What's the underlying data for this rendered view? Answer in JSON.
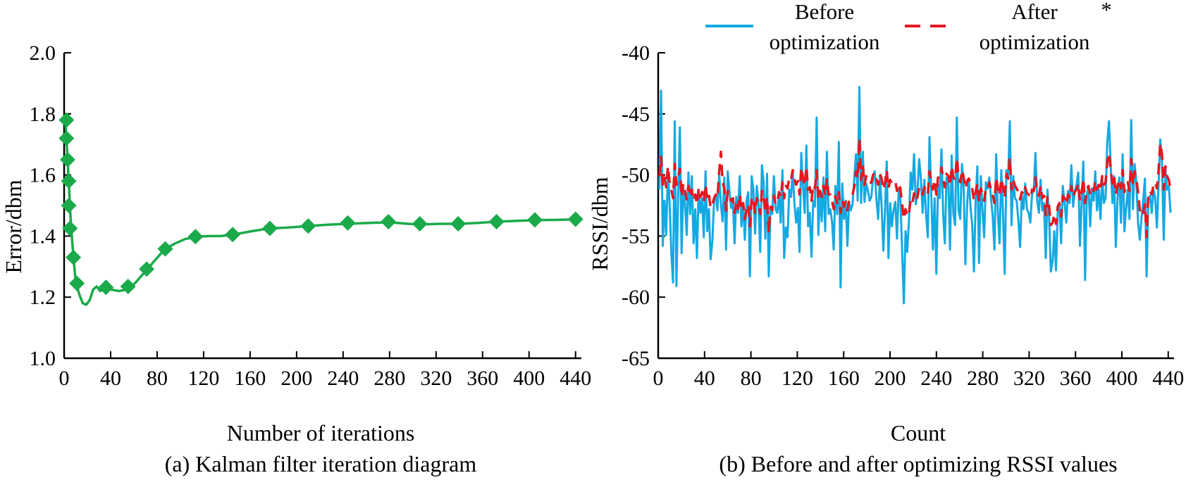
{
  "chart_data": [
    {
      "type": "line",
      "caption": "(a) Kalman filter iteration diagram",
      "xlabel": "Number of iterations",
      "ylabel": "Error/dbm",
      "xlim": [
        0,
        445
      ],
      "ylim": [
        1.0,
        2.0
      ],
      "xticks": [
        "0",
        "40",
        "80",
        "120",
        "160",
        "200",
        "240",
        "280",
        "320",
        "360",
        "400",
        "440"
      ],
      "yticks": [
        "1.0",
        "1.2",
        "1.4",
        "1.6",
        "1.8",
        "2.0"
      ],
      "color": "#1aaa4a",
      "curve": [
        [
          1,
          1.78
        ],
        [
          2,
          1.72
        ],
        [
          3,
          1.65
        ],
        [
          4,
          1.58
        ],
        [
          5,
          1.5
        ],
        [
          6,
          1.43
        ],
        [
          8,
          1.33
        ],
        [
          10,
          1.25
        ],
        [
          13,
          1.21
        ],
        [
          16,
          1.18
        ],
        [
          19,
          1.175
        ],
        [
          22,
          1.19
        ],
        [
          25,
          1.225
        ],
        [
          28,
          1.235
        ],
        [
          31,
          1.22
        ],
        [
          35,
          1.228
        ],
        [
          40,
          1.225
        ],
        [
          47,
          1.22
        ],
        [
          55,
          1.225
        ],
        [
          62,
          1.25
        ],
        [
          70,
          1.285
        ],
        [
          78,
          1.32
        ],
        [
          86,
          1.355
        ],
        [
          95,
          1.375
        ],
        [
          104,
          1.39
        ],
        [
          114,
          1.398
        ],
        [
          125,
          1.4
        ],
        [
          135,
          1.4
        ],
        [
          146,
          1.405
        ],
        [
          160,
          1.415
        ],
        [
          177,
          1.425
        ],
        [
          193,
          1.428
        ],
        [
          210,
          1.433
        ],
        [
          227,
          1.437
        ],
        [
          244,
          1.44
        ],
        [
          262,
          1.443
        ],
        [
          280,
          1.445
        ],
        [
          296,
          1.44
        ],
        [
          307,
          1.438
        ],
        [
          323,
          1.44
        ],
        [
          340,
          1.44
        ],
        [
          356,
          1.443
        ],
        [
          372,
          1.447
        ],
        [
          390,
          1.45
        ],
        [
          406,
          1.452
        ],
        [
          425,
          1.453
        ],
        [
          442,
          1.455
        ]
      ],
      "markers": [
        [
          2,
          1.78
        ],
        [
          2,
          1.72
        ],
        [
          3,
          1.65
        ],
        [
          4,
          1.58
        ],
        [
          4,
          1.5
        ],
        [
          5,
          1.425
        ],
        [
          8,
          1.33
        ],
        [
          11,
          1.245
        ],
        [
          36,
          1.232
        ],
        [
          55,
          1.235
        ],
        [
          71,
          1.292
        ],
        [
          87,
          1.358
        ],
        [
          113,
          1.398
        ],
        [
          145,
          1.405
        ],
        [
          177,
          1.425
        ],
        [
          210,
          1.433
        ],
        [
          244,
          1.443
        ],
        [
          279,
          1.447
        ],
        [
          306,
          1.44
        ],
        [
          339,
          1.44
        ],
        [
          372,
          1.447
        ],
        [
          405,
          1.453
        ],
        [
          440,
          1.455
        ]
      ]
    },
    {
      "type": "line",
      "caption": "(b) Before and after optimizing RSSI values",
      "xlabel": "Count",
      "ylabel": "RSSI/dbm",
      "xlim": [
        0,
        445
      ],
      "ylim": [
        -65,
        -40
      ],
      "xticks": [
        "0",
        "40",
        "80",
        "120",
        "160",
        "200",
        "240",
        "280",
        "320",
        "360",
        "400",
        "440"
      ],
      "yticks": [
        "-65",
        "-60",
        "-55",
        "-50",
        "-45",
        "-40"
      ],
      "legend_position": "top",
      "annotation": "*",
      "series": [
        {
          "name": "Before optimization",
          "color": "#14a9e3",
          "style": "solid",
          "values": [
            -51.2,
            -43.1,
            -55.8,
            -52.1,
            -54.9,
            -49.6,
            -52.4,
            -56.3,
            -58.8,
            -45.6,
            -59.1,
            -51.8,
            -46.1,
            -56.4,
            -51.1,
            -52.3,
            -54.9,
            -49.8,
            -53.2,
            -50.1,
            -55.6,
            -52.8,
            -56.8,
            -51.2,
            -53.1,
            -51.9,
            -55.1,
            -49.7,
            -54.6,
            -52.8,
            -56.9,
            -55.4,
            -52.1,
            -51.6,
            -52.9,
            -49.9,
            -52.4,
            -53.8,
            -50.2,
            -56.1,
            -49.7,
            -51.3,
            -52.7,
            -52.1,
            -55.6,
            -51.8,
            -53.1,
            -50.1,
            -54.2,
            -52.3,
            -55.3,
            -52.1,
            -51.4,
            -58.3,
            -50.1,
            -51.2,
            -54.8,
            -50.9,
            -52.4,
            -56.3,
            -49.2,
            -50.6,
            -55.2,
            -49.9,
            -58.3,
            -52.6,
            -53.2,
            -50.1,
            -52.8,
            -53.1,
            -51.6,
            -53.9,
            -49.6,
            -56.8,
            -54.3,
            -55.1,
            -51.2,
            -51.8,
            -49.6,
            -52.3,
            -53.9,
            -52.7,
            -56.3,
            -48.2,
            -50.8,
            -53.1,
            -47.6,
            -54.2,
            -53.1,
            -56.7,
            -52.1,
            -52.6,
            -45.3,
            -54.9,
            -51.4,
            -53.8,
            -50.2,
            -54.6,
            -48.1,
            -53.2,
            -52.8,
            -53.8,
            -56.1,
            -50.9,
            -53.2,
            -47.3,
            -59.2,
            -50.7,
            -53.6,
            -52.1,
            -55.8,
            -52.2,
            -52.9,
            -52.4,
            -50.3,
            -48.3,
            -52.1,
            -42.8,
            -52.3,
            -48.1,
            -52.2,
            -50.7,
            -51.3,
            -52.1,
            -51.8,
            -50.2,
            -49.7,
            -52.1,
            -53.6,
            -50.1,
            -52.4,
            -56.2,
            -52.9,
            -48.9,
            -56.8,
            -52.3,
            -54.2,
            -52.9,
            -52.2,
            -55.2,
            -51.1,
            -51.9,
            -56.3,
            -60.5,
            -54.6,
            -56.3,
            -53.7,
            -49.8,
            -51.2,
            -48.3,
            -52.4,
            -51.2,
            -48.7,
            -50.3,
            -53.1,
            -50.4,
            -53.2,
            -55.1,
            -46.9,
            -51.3,
            -56.1,
            -51.9,
            -58.1,
            -50.7,
            -51.9,
            -47.9,
            -53.2,
            -55.6,
            -50.2,
            -50.2,
            -56.1,
            -48.4,
            -53.2,
            -54.1,
            -45.3,
            -52.9,
            -53.6,
            -49.1,
            -51.1,
            -57.3,
            -52.4,
            -50.3,
            -52.6,
            -54.1,
            -57.9,
            -52.1,
            -49.3,
            -57.2,
            -50.1,
            -52.9,
            -55.1,
            -50.6,
            -51.1,
            -50.2,
            -51.9,
            -53.4,
            -56.1,
            -48.3,
            -53.1,
            -55.6,
            -49.6,
            -53.1,
            -58.1,
            -49.6,
            -50.3,
            -45.6,
            -54.1,
            -50.1,
            -51.9,
            -52.1,
            -53.7,
            -55.9,
            -51.7,
            -52.8,
            -50.7,
            -52.8,
            -53.1,
            -53.9,
            -51.6,
            -51.2,
            -48.2,
            -52.1,
            -53.1,
            -50.4,
            -52.9,
            -52.3,
            -56.8,
            -51.2,
            -53.6,
            -57.9,
            -57.1,
            -54.6,
            -57.8,
            -53.1,
            -52.3,
            -55.6,
            -50.9,
            -52.2,
            -53.9,
            -51.3,
            -52.3,
            -49.2,
            -52.6,
            -51.3,
            -50.8,
            -49.8,
            -55.8,
            -52.3,
            -48.9,
            -58.6,
            -51.7,
            -50.9,
            -54.2,
            -51.1,
            -52.1,
            -49.7,
            -52.9,
            -51.2,
            -53.6,
            -50.2,
            -52.3,
            -51.9,
            -47.3,
            -45.6,
            -49.1,
            -52.3,
            -50.1,
            -55.9,
            -51.8,
            -50.2,
            -53.9,
            -48.3,
            -54.6,
            -52.7,
            -51.2,
            -53.6,
            -45.5,
            -52.8,
            -49.1,
            -50.6,
            -53.9,
            -55.3,
            -53.6,
            -52.1,
            -50.3,
            -58.3,
            -51.9,
            -51.7,
            -53.1,
            -51.2,
            -51.8,
            -54.3,
            -50.7,
            -47.1,
            -48.9,
            -55.3,
            -49.6,
            -51.2,
            -50.9,
            -53.1
          ]
        },
        {
          "name": "After optimization",
          "color": "#e8161e",
          "style": "dashed",
          "values": [
            -50.1,
            -48.5,
            -50.8,
            -50.2,
            -51.0,
            -49.3,
            -50.6,
            -51.2,
            -51.9,
            -49.1,
            -50.8,
            -50.2,
            -49.5,
            -51.8,
            -50.7,
            -51.3,
            -52.0,
            -50.9,
            -51.8,
            -51.2,
            -52.1,
            -51.6,
            -52.4,
            -51.1,
            -51.8,
            -51.4,
            -52.2,
            -50.8,
            -52.0,
            -51.6,
            -52.7,
            -52.4,
            -51.9,
            -51.6,
            -51.9,
            -49.7,
            -48.1,
            -50.6,
            -51.1,
            -52.9,
            -51.3,
            -51.7,
            -52.1,
            -51.9,
            -53.1,
            -52.2,
            -52.8,
            -51.6,
            -52.9,
            -52.3,
            -53.6,
            -52.8,
            -52.4,
            -54.2,
            -51.8,
            -52.1,
            -53.1,
            -51.9,
            -52.4,
            -53.2,
            -51.3,
            -51.9,
            -53.1,
            -51.8,
            -54.8,
            -52.6,
            -52.9,
            -51.7,
            -52.4,
            -52.3,
            -51.4,
            -51.8,
            -50.6,
            -51.9,
            -50.9,
            -51.1,
            -50.2,
            -50.4,
            -49.6,
            -50.3,
            -50.8,
            -50.5,
            -51.6,
            -49.4,
            -50.2,
            -50.9,
            -49.3,
            -51.2,
            -51.0,
            -52.1,
            -50.8,
            -51.1,
            -49.6,
            -52.0,
            -51.3,
            -51.8,
            -50.9,
            -51.7,
            -50.3,
            -51.6,
            -51.6,
            -52.1,
            -52.8,
            -51.7,
            -52.3,
            -51.4,
            -53.1,
            -52.1,
            -52.6,
            -52.2,
            -52.9,
            -52.0,
            -51.8,
            -51.6,
            -51.0,
            -49.7,
            -50.3,
            -47.0,
            -50.4,
            -49.2,
            -50.8,
            -50.1,
            -50.4,
            -50.7,
            -50.6,
            -50.0,
            -49.8,
            -50.4,
            -50.8,
            -49.9,
            -50.3,
            -51.2,
            -50.6,
            -49.6,
            -51.1,
            -50.4,
            -50.7,
            -50.6,
            -50.5,
            -51.3,
            -50.7,
            -51.1,
            -52.4,
            -53.6,
            -52.8,
            -53.4,
            -53.1,
            -52.0,
            -52.3,
            -51.5,
            -52.1,
            -51.8,
            -51.0,
            -51.2,
            -51.6,
            -51.0,
            -51.3,
            -51.6,
            -49.7,
            -50.6,
            -51.2,
            -50.4,
            -51.6,
            -50.2,
            -50.3,
            -49.4,
            -50.3,
            -51.0,
            -49.9,
            -50.1,
            -50.9,
            -49.3,
            -50.2,
            -50.4,
            -48.6,
            -50.1,
            -50.6,
            -49.6,
            -50.2,
            -51.1,
            -50.5,
            -50.3,
            -50.7,
            -51.1,
            -52.1,
            -51.4,
            -50.7,
            -52.2,
            -51.1,
            -51.6,
            -52.1,
            -51.1,
            -51.2,
            -50.6,
            -51.2,
            -51.6,
            -52.3,
            -50.2,
            -51.1,
            -51.7,
            -50.3,
            -51.0,
            -51.9,
            -49.9,
            -50.3,
            -48.6,
            -51.2,
            -50.4,
            -50.9,
            -51.1,
            -51.4,
            -52.0,
            -51.4,
            -51.6,
            -51.0,
            -51.5,
            -51.6,
            -51.9,
            -51.2,
            -51.3,
            -50.2,
            -51.4,
            -51.7,
            -50.9,
            -51.9,
            -51.7,
            -53.3,
            -51.8,
            -52.6,
            -54.1,
            -53.9,
            -53.2,
            -54.0,
            -52.6,
            -52.3,
            -53.4,
            -51.7,
            -51.9,
            -52.4,
            -51.6,
            -51.9,
            -50.9,
            -51.8,
            -51.4,
            -51.2,
            -50.7,
            -52.1,
            -51.4,
            -50.3,
            -52.3,
            -51.2,
            -50.9,
            -51.6,
            -51.1,
            -51.3,
            -50.5,
            -51.2,
            -50.8,
            -51.3,
            -50.1,
            -50.8,
            -50.6,
            -48.9,
            -48.2,
            -49.6,
            -50.7,
            -50.1,
            -51.6,
            -50.9,
            -50.4,
            -51.1,
            -49.6,
            -51.4,
            -51.0,
            -50.6,
            -51.3,
            -48.7,
            -50.8,
            -49.7,
            -50.3,
            -51.4,
            -52.9,
            -52.6,
            -53.1,
            -52.4,
            -55.1,
            -51.6,
            -51.3,
            -51.6,
            -50.8,
            -50.6,
            -51.1,
            -49.6,
            -47.4,
            -48.3,
            -51.2,
            -49.3,
            -50.1,
            -50.4,
            -51.2
          ]
        }
      ]
    }
  ]
}
